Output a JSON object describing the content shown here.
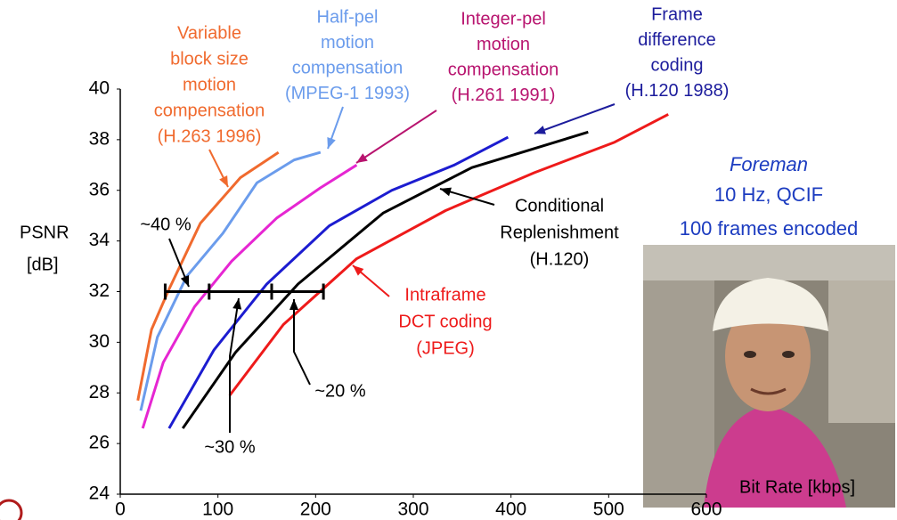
{
  "chart_data": {
    "type": "line",
    "x_label": "Bit Rate [kbps]",
    "y_label": [
      "PSNR",
      "[dB]"
    ],
    "xlim": [
      0,
      600
    ],
    "ylim": [
      24,
      40
    ],
    "xticks": [
      0,
      100,
      200,
      300,
      400,
      500,
      600
    ],
    "yticks": [
      24,
      26,
      28,
      30,
      32,
      34,
      36,
      38,
      40
    ],
    "series": [
      {
        "label": [
          "Variable",
          "block size",
          "motion",
          "compensation",
          "(H.263 1996)"
        ],
        "color": "#f06a2e",
        "text_color": "#f06a2e",
        "x": [
          18,
          32,
          50,
          82,
          123,
          162
        ],
        "values": [
          27.7,
          30.5,
          32.1,
          34.7,
          36.5,
          37.5
        ]
      },
      {
        "label": [
          "Half-pel",
          "motion",
          "compensation",
          "(MPEG-1 1993)"
        ],
        "color": "#6b9cec",
        "text_color": "#6b9cec",
        "x": [
          21,
          38,
          68,
          105,
          140,
          178,
          205
        ],
        "values": [
          27.3,
          30.2,
          32.6,
          34.3,
          36.3,
          37.2,
          37.5
        ]
      },
      {
        "label": [
          "Integer-pel",
          "motion",
          "compensation",
          "(H.261 1991)"
        ],
        "color": "#e626d2",
        "text_color": "#b8146f",
        "x": [
          23,
          44,
          76,
          114,
          160,
          205,
          242
        ],
        "values": [
          26.6,
          29.2,
          31.4,
          33.2,
          34.9,
          36.1,
          37.0
        ]
      },
      {
        "label": [
          "Frame",
          "difference",
          "coding",
          "(H.120 1988)"
        ],
        "color": "#1c1cd0",
        "text_color": "#1c1c9c",
        "x": [
          50,
          96,
          150,
          214,
          278,
          342,
          397
        ],
        "values": [
          26.6,
          29.7,
          32.3,
          34.6,
          36.0,
          37.0,
          38.1
        ]
      },
      {
        "label": [
          "Conditional",
          "Replenishment",
          "(H.120)"
        ],
        "color": "#000000",
        "text_color": "#000000",
        "x": [
          64,
          118,
          182,
          269,
          360,
          479
        ],
        "values": [
          26.6,
          29.6,
          32.3,
          35.1,
          36.9,
          38.3
        ]
      },
      {
        "label": [
          "Intraframe",
          "DCT coding",
          "(JPEG)"
        ],
        "color": "#ee1a1a",
        "text_color": "#ee1a1a",
        "x": [
          112,
          167,
          242,
          333,
          424,
          506,
          561
        ],
        "values": [
          27.9,
          30.7,
          33.3,
          35.2,
          36.7,
          37.9,
          39.0
        ]
      }
    ],
    "reference_line": {
      "y": 32,
      "x": [
        46,
        91,
        155,
        208
      ]
    },
    "savings_labels": [
      "~40 %",
      "~30 %",
      "~20 %"
    ],
    "inset_caption": [
      "Foreman",
      "10 Hz, QCIF",
      "100 frames encoded"
    ]
  }
}
